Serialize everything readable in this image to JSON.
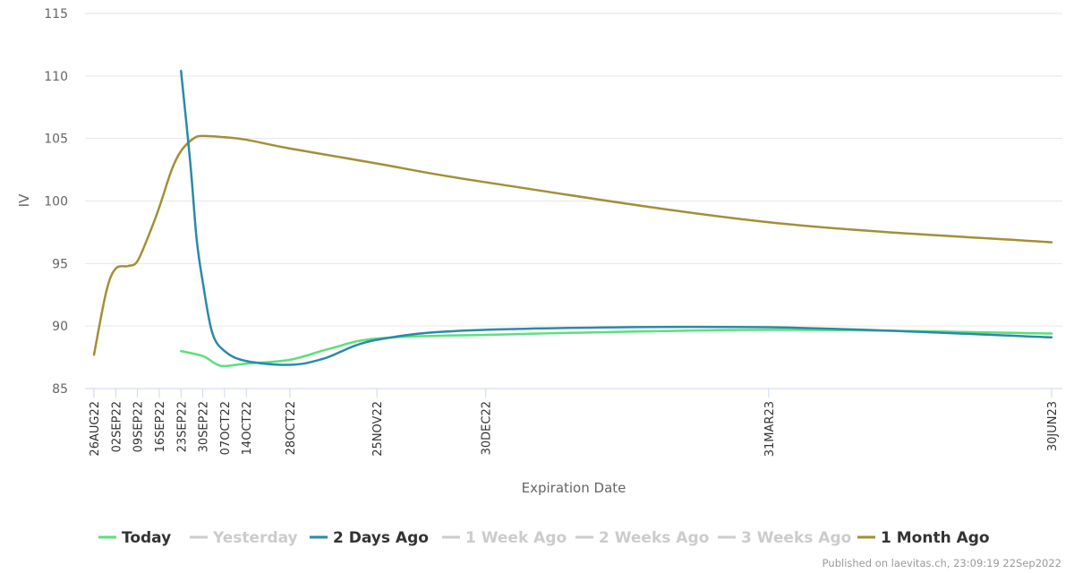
{
  "chart_data": {
    "type": "line",
    "title": "",
    "xlabel": "Expiration Date",
    "ylabel": "IV",
    "ylim": [
      85,
      115
    ],
    "yticks": [
      85,
      90,
      95,
      100,
      105,
      110,
      115
    ],
    "grid": "horizontal",
    "legend_position": "bottom",
    "x_ticks": [
      {
        "label": "26AUG22",
        "date": "2022-08-26"
      },
      {
        "label": "02SEP22",
        "date": "2022-09-02"
      },
      {
        "label": "09SEP22",
        "date": "2022-09-09"
      },
      {
        "label": "16SEP22",
        "date": "2022-09-16"
      },
      {
        "label": "23SEP22",
        "date": "2022-09-23"
      },
      {
        "label": "30SEP22",
        "date": "2022-09-30"
      },
      {
        "label": "07OCT22",
        "date": "2022-10-07"
      },
      {
        "label": "14OCT22",
        "date": "2022-10-14"
      },
      {
        "label": "28OCT22",
        "date": "2022-10-28"
      },
      {
        "label": "25NOV22",
        "date": "2022-11-25"
      },
      {
        "label": "30DEC22",
        "date": "2022-12-30"
      },
      {
        "label": "31MAR23",
        "date": "2023-03-31"
      },
      {
        "label": "30JUN23",
        "date": "2023-06-30"
      }
    ],
    "series": [
      {
        "name": "Today",
        "color": "#5be07a",
        "visible": true,
        "points": [
          [
            "2022-09-23",
            88.0
          ],
          [
            "2022-09-30",
            87.6
          ],
          [
            "2022-10-04",
            87.0
          ],
          [
            "2022-10-07",
            86.8
          ],
          [
            "2022-10-14",
            87.0
          ],
          [
            "2022-10-28",
            87.3
          ],
          [
            "2022-11-10",
            88.2
          ],
          [
            "2022-11-25",
            89.0
          ],
          [
            "2022-12-30",
            89.3
          ],
          [
            "2023-03-31",
            89.7
          ],
          [
            "2023-06-30",
            89.4
          ]
        ]
      },
      {
        "name": "Yesterday",
        "color": "#cccccc",
        "visible": false,
        "points": []
      },
      {
        "name": "2 Days Ago",
        "color": "#2a8aa6",
        "visible": true,
        "points": [
          [
            "2022-09-23",
            110.4
          ],
          [
            "2022-09-26",
            103.0
          ],
          [
            "2022-09-28",
            97.0
          ],
          [
            "2022-09-30",
            93.5
          ],
          [
            "2022-10-03",
            89.5
          ],
          [
            "2022-10-07",
            88.0
          ],
          [
            "2022-10-14",
            87.2
          ],
          [
            "2022-10-28",
            86.9
          ],
          [
            "2022-11-08",
            87.4
          ],
          [
            "2022-11-25",
            88.9
          ],
          [
            "2022-12-30",
            89.7
          ],
          [
            "2023-03-31",
            89.9
          ],
          [
            "2023-06-30",
            89.1
          ]
        ]
      },
      {
        "name": "1 Week Ago",
        "color": "#cccccc",
        "visible": false,
        "points": []
      },
      {
        "name": "2 Weeks Ago",
        "color": "#cccccc",
        "visible": false,
        "points": []
      },
      {
        "name": "3 Weeks Ago",
        "color": "#cccccc",
        "visible": false,
        "points": []
      },
      {
        "name": "1 Month Ago",
        "color": "#a38f36",
        "visible": true,
        "points": [
          [
            "2022-08-26",
            87.7
          ],
          [
            "2022-08-30",
            92.8
          ],
          [
            "2022-09-02",
            94.6
          ],
          [
            "2022-09-06",
            94.8
          ],
          [
            "2022-09-09",
            95.2
          ],
          [
            "2022-09-13",
            97.5
          ],
          [
            "2022-09-16",
            99.5
          ],
          [
            "2022-09-20",
            102.5
          ],
          [
            "2022-09-23",
            104.0
          ],
          [
            "2022-09-27",
            105.0
          ],
          [
            "2022-09-30",
            105.2
          ],
          [
            "2022-10-07",
            105.1
          ],
          [
            "2022-10-14",
            104.9
          ],
          [
            "2022-10-28",
            104.2
          ],
          [
            "2022-11-25",
            103.0
          ],
          [
            "2022-12-30",
            101.5
          ],
          [
            "2023-03-31",
            98.3
          ],
          [
            "2023-06-30",
            96.7
          ]
        ]
      }
    ]
  },
  "footer": {
    "credit": "Published on laevitas.ch, 23:09:19 22Sep2022"
  }
}
